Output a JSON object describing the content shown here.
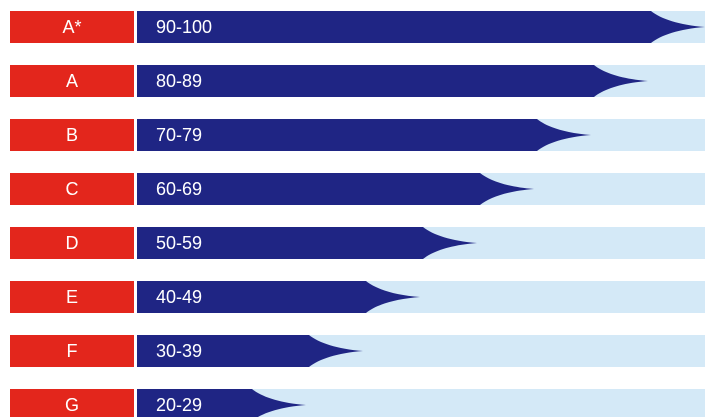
{
  "colors": {
    "grade_bg": "#e3261c",
    "bar": "#1f2584",
    "track": "#d4e9f7",
    "text": "#ffffff"
  },
  "grades": [
    {
      "grade": "A*",
      "range": "90-100",
      "fill": 1.0
    },
    {
      "grade": "A",
      "range": "80-89",
      "fill": 0.9
    },
    {
      "grade": "B",
      "range": "70-79",
      "fill": 0.8
    },
    {
      "grade": "C",
      "range": "60-69",
      "fill": 0.7
    },
    {
      "grade": "D",
      "range": "50-59",
      "fill": 0.6
    },
    {
      "grade": "E",
      "range": "40-49",
      "fill": 0.5
    },
    {
      "grade": "F",
      "range": "30-39",
      "fill": 0.4
    },
    {
      "grade": "G",
      "range": "20-29",
      "fill": 0.3
    }
  ]
}
